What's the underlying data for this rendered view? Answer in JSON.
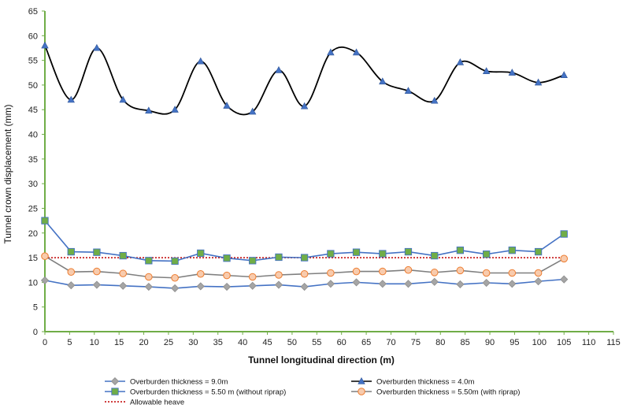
{
  "chart_data": {
    "type": "line",
    "xlabel": "Tunnel longitudinal direction (m)",
    "ylabel": "Tunnel crown displacement (mm)",
    "xlim": [
      0,
      115
    ],
    "ylim": [
      0,
      65
    ],
    "xticks": [
      "0",
      "5",
      "10",
      "15",
      "20",
      "25",
      "30",
      "35",
      "40",
      "45",
      "50",
      "55",
      "60",
      "65",
      "70",
      "75",
      "80",
      "85",
      "90",
      "95",
      "100",
      "105",
      "110",
      "115"
    ],
    "yticks": [
      "0",
      "5",
      "10",
      "15",
      "20",
      "25",
      "30",
      "35",
      "40",
      "45",
      "50",
      "55",
      "60",
      "65"
    ],
    "grid": false,
    "legend_position": "bottom",
    "series": [
      {
        "name": "Overburden thickness = 9.0m",
        "color": "#4472c4",
        "marker": "diamond",
        "marker_color": "#a5a5a5",
        "smooth": false,
        "x": [
          0,
          5.3,
          10.5,
          15.8,
          21,
          26.3,
          31.5,
          36.8,
          42,
          47.3,
          52.5,
          57.8,
          63,
          68.3,
          73.5,
          78.8,
          84,
          89.3,
          94.5,
          99.8,
          105
        ],
        "y": [
          10.4,
          9.4,
          9.5,
          9.3,
          9.1,
          8.8,
          9.2,
          9.1,
          9.3,
          9.5,
          9.1,
          9.7,
          10.0,
          9.7,
          9.7,
          10.1,
          9.6,
          9.9,
          9.7,
          10.2,
          10.6
        ]
      },
      {
        "name": "Overburden thickness = 4.0m",
        "color": "#000000",
        "marker": "triangle",
        "marker_color": "#4472c4",
        "smooth": true,
        "x": [
          0,
          5.3,
          10.5,
          15.8,
          21,
          26.3,
          31.5,
          36.8,
          42,
          47.3,
          52.5,
          57.8,
          63,
          68.3,
          73.5,
          78.8,
          84,
          89.3,
          94.5,
          99.8,
          105
        ],
        "y": [
          58,
          47,
          57.5,
          47,
          44.8,
          45,
          54.8,
          45.8,
          44.6,
          53,
          45.7,
          56.6,
          56.6,
          50.7,
          48.8,
          46.8,
          54.6,
          52.8,
          52.5,
          50.5,
          52
        ]
      },
      {
        "name": "Overburden thickness = 5.50 m (without riprap)",
        "color": "#4472c4",
        "marker": "square",
        "marker_color": "#70ad47",
        "smooth": false,
        "x": [
          0,
          5.3,
          10.5,
          15.8,
          21,
          26.3,
          31.5,
          36.8,
          42,
          47.3,
          52.5,
          57.8,
          63,
          68.3,
          73.5,
          78.8,
          84,
          89.3,
          94.5,
          99.8,
          105
        ],
        "y": [
          22.5,
          16.2,
          16.1,
          15.4,
          14.4,
          14.3,
          15.9,
          14.9,
          14.4,
          15.1,
          15.0,
          15.8,
          16.1,
          15.8,
          16.2,
          15.4,
          16.5,
          15.7,
          16.5,
          16.2,
          19.8
        ]
      },
      {
        "name": "Overburden thickness = 5.50m (with riprap)",
        "color": "#7f7f7f",
        "marker": "circle",
        "marker_color": "#f8cbad",
        "marker_stroke": "#ed7d31",
        "smooth": false,
        "x": [
          0,
          5.3,
          10.5,
          15.8,
          21,
          26.3,
          31.5,
          36.8,
          42,
          47.3,
          52.5,
          57.8,
          63,
          68.3,
          73.5,
          78.8,
          84,
          89.3,
          94.5,
          99.8,
          105
        ],
        "y": [
          15.3,
          12.1,
          12.2,
          11.8,
          11.1,
          10.9,
          11.7,
          11.4,
          11.1,
          11.5,
          11.7,
          11.9,
          12.2,
          12.2,
          12.5,
          12.0,
          12.4,
          11.9,
          11.9,
          11.9,
          14.8
        ]
      },
      {
        "name": "Allowable heave",
        "color": "#c00000",
        "marker": "none",
        "dashed": true,
        "smooth": false,
        "x": [
          0,
          105
        ],
        "y": [
          15,
          15
        ]
      }
    ],
    "axis_color": "#70ad47"
  }
}
